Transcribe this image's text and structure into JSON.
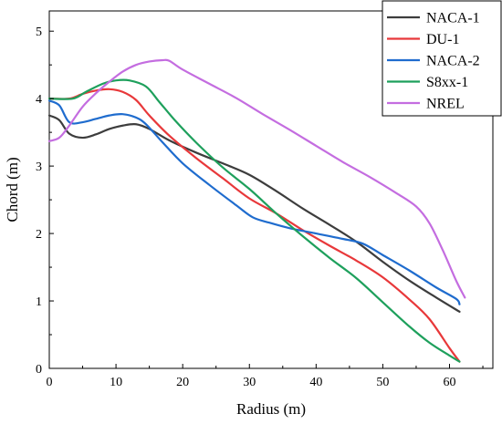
{
  "chart_data": {
    "type": "line",
    "title": "",
    "xlabel": "Radius (m)",
    "ylabel": "Chord (m)",
    "xlim": [
      0,
      66.5
    ],
    "ylim": [
      0,
      5.3
    ],
    "xticks": [
      0,
      10,
      20,
      30,
      40,
      50,
      60
    ],
    "yticks": [
      0,
      1,
      2,
      3,
      4,
      5
    ],
    "grid": false,
    "legend": "top-right",
    "series": [
      {
        "name": "NACA-1",
        "color": "#3d3d3d",
        "points": [
          [
            0,
            3.75
          ],
          [
            1.5,
            3.68
          ],
          [
            3,
            3.48
          ],
          [
            5,
            3.42
          ],
          [
            7,
            3.47
          ],
          [
            9,
            3.55
          ],
          [
            11,
            3.6
          ],
          [
            13,
            3.62
          ],
          [
            15,
            3.55
          ],
          [
            18,
            3.38
          ],
          [
            22,
            3.2
          ],
          [
            26,
            3.04
          ],
          [
            30,
            2.87
          ],
          [
            34,
            2.63
          ],
          [
            38,
            2.37
          ],
          [
            42,
            2.13
          ],
          [
            46,
            1.88
          ],
          [
            50,
            1.58
          ],
          [
            54,
            1.3
          ],
          [
            58,
            1.05
          ],
          [
            61.5,
            0.84
          ]
        ]
      },
      {
        "name": "DU-1",
        "color": "#e8383a",
        "points": [
          [
            0,
            4.0
          ],
          [
            3,
            4.0
          ],
          [
            5,
            4.07
          ],
          [
            7,
            4.12
          ],
          [
            9,
            4.14
          ],
          [
            11,
            4.1
          ],
          [
            13,
            3.98
          ],
          [
            15,
            3.75
          ],
          [
            18,
            3.45
          ],
          [
            22,
            3.12
          ],
          [
            26,
            2.82
          ],
          [
            30,
            2.52
          ],
          [
            34,
            2.3
          ],
          [
            38,
            2.05
          ],
          [
            42,
            1.82
          ],
          [
            46,
            1.6
          ],
          [
            50,
            1.35
          ],
          [
            54,
            1.02
          ],
          [
            57,
            0.73
          ],
          [
            60,
            0.3
          ],
          [
            61.5,
            0.1
          ]
        ]
      },
      {
        "name": "NACA-2",
        "color": "#1f6cce",
        "points": [
          [
            0,
            3.97
          ],
          [
            1.5,
            3.9
          ],
          [
            3,
            3.65
          ],
          [
            5,
            3.65
          ],
          [
            7,
            3.7
          ],
          [
            9,
            3.75
          ],
          [
            11,
            3.77
          ],
          [
            13,
            3.72
          ],
          [
            14.5,
            3.62
          ],
          [
            17,
            3.35
          ],
          [
            20,
            3.04
          ],
          [
            24,
            2.72
          ],
          [
            28,
            2.42
          ],
          [
            30.5,
            2.24
          ],
          [
            33,
            2.16
          ],
          [
            36,
            2.08
          ],
          [
            40,
            2.0
          ],
          [
            44,
            1.92
          ],
          [
            47,
            1.85
          ],
          [
            50,
            1.68
          ],
          [
            54,
            1.45
          ],
          [
            58,
            1.2
          ],
          [
            61,
            1.03
          ],
          [
            61.5,
            0.95
          ]
        ]
      },
      {
        "name": "S8xx-1",
        "color": "#1ea05c",
        "points": [
          [
            0,
            4.0
          ],
          [
            3.5,
            4.0
          ],
          [
            5.5,
            4.1
          ],
          [
            8,
            4.22
          ],
          [
            10,
            4.27
          ],
          [
            12,
            4.27
          ],
          [
            14.5,
            4.18
          ],
          [
            16.5,
            3.95
          ],
          [
            19,
            3.66
          ],
          [
            22,
            3.35
          ],
          [
            26,
            2.98
          ],
          [
            30,
            2.66
          ],
          [
            34,
            2.3
          ],
          [
            38,
            1.96
          ],
          [
            42,
            1.64
          ],
          [
            46,
            1.34
          ],
          [
            50,
            0.98
          ],
          [
            54,
            0.62
          ],
          [
            57,
            0.38
          ],
          [
            60,
            0.19
          ],
          [
            61.5,
            0.1
          ]
        ]
      },
      {
        "name": "NREL",
        "color": "#c46de0",
        "points": [
          [
            0,
            3.37
          ],
          [
            1.5,
            3.42
          ],
          [
            3,
            3.6
          ],
          [
            5,
            3.88
          ],
          [
            7,
            4.08
          ],
          [
            9,
            4.25
          ],
          [
            11,
            4.4
          ],
          [
            13,
            4.5
          ],
          [
            15,
            4.55
          ],
          [
            17,
            4.57
          ],
          [
            18,
            4.56
          ],
          [
            20,
            4.43
          ],
          [
            24,
            4.22
          ],
          [
            28,
            4.01
          ],
          [
            32,
            3.77
          ],
          [
            36,
            3.54
          ],
          [
            40,
            3.3
          ],
          [
            44,
            3.06
          ],
          [
            48,
            2.84
          ],
          [
            52,
            2.6
          ],
          [
            55,
            2.4
          ],
          [
            57,
            2.15
          ],
          [
            59,
            1.75
          ],
          [
            61,
            1.3
          ],
          [
            62.3,
            1.05
          ]
        ]
      }
    ]
  }
}
